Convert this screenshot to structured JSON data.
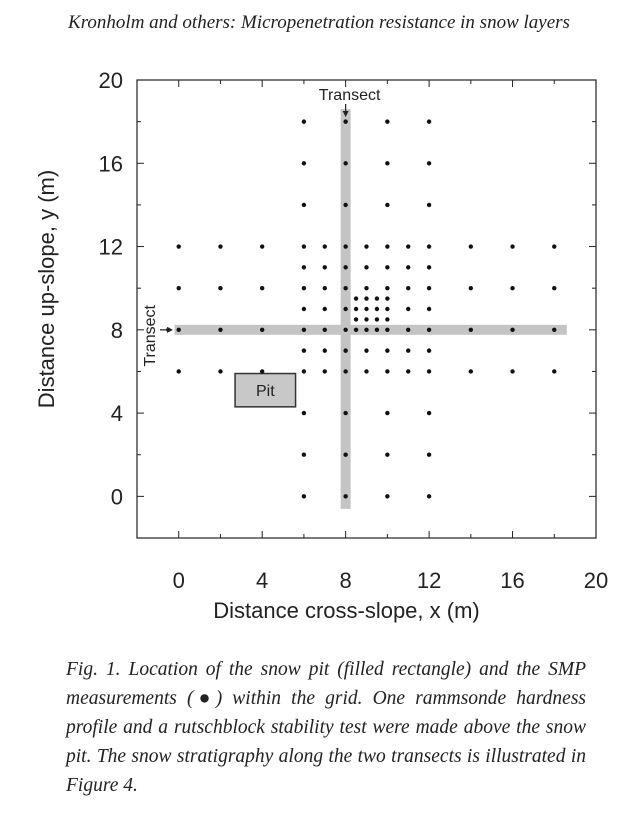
{
  "header": "Kronholm and others: Micropenetration resistance in snow layers",
  "caption": "Fig. 1. Location of the snow pit (filled rectangle) and the SMP measurements (●) within the grid. One rammsonde hardness profile and a rutschblock stability test were made above the snow pit. The snow stratigraphy along the two transects is illustrated in Figure 4.",
  "chart_data": {
    "type": "scatter",
    "xlabel": "Distance cross-slope, x (m)",
    "ylabel": "Distance up-slope, y (m)",
    "xlim": [
      -2,
      20
    ],
    "ylim": [
      -2,
      20
    ],
    "xticks": [
      0,
      4,
      8,
      12,
      16,
      20
    ],
    "yticks": [
      0,
      4,
      8,
      12,
      16,
      20
    ],
    "transect_label": "Transect",
    "transect_vertical_x": 8,
    "transect_horizontal_y": 8,
    "pit": {
      "label": "Pit",
      "x0": 2.7,
      "x1": 5.6,
      "y0": 4.3,
      "y1": 5.9
    },
    "points": [
      [
        6,
        18
      ],
      [
        8,
        18
      ],
      [
        10,
        18
      ],
      [
        12,
        18
      ],
      [
        6,
        16
      ],
      [
        8,
        16
      ],
      [
        10,
        16
      ],
      [
        12,
        16
      ],
      [
        6,
        14
      ],
      [
        8,
        14
      ],
      [
        10,
        14
      ],
      [
        12,
        14
      ],
      [
        0,
        12
      ],
      [
        2,
        12
      ],
      [
        4,
        12
      ],
      [
        6,
        12
      ],
      [
        7,
        12
      ],
      [
        8,
        12
      ],
      [
        9,
        12
      ],
      [
        10,
        12
      ],
      [
        11,
        12
      ],
      [
        12,
        12
      ],
      [
        14,
        12
      ],
      [
        16,
        12
      ],
      [
        18,
        12
      ],
      [
        6,
        11
      ],
      [
        7,
        11
      ],
      [
        8,
        11
      ],
      [
        9,
        11
      ],
      [
        10,
        11
      ],
      [
        11,
        11
      ],
      [
        12,
        11
      ],
      [
        0,
        10
      ],
      [
        2,
        10
      ],
      [
        4,
        10
      ],
      [
        6,
        10
      ],
      [
        7,
        10
      ],
      [
        8,
        10
      ],
      [
        9,
        10
      ],
      [
        10,
        10
      ],
      [
        11,
        10
      ],
      [
        12,
        10
      ],
      [
        14,
        10
      ],
      [
        16,
        10
      ],
      [
        18,
        10
      ],
      [
        8.5,
        9.5
      ],
      [
        9,
        9.5
      ],
      [
        9.5,
        9.5
      ],
      [
        10,
        9.5
      ],
      [
        6,
        9
      ],
      [
        7,
        9
      ],
      [
        8,
        9
      ],
      [
        8.5,
        9
      ],
      [
        9,
        9
      ],
      [
        9.5,
        9
      ],
      [
        10,
        9
      ],
      [
        11,
        9
      ],
      [
        12,
        9
      ],
      [
        8.5,
        8.5
      ],
      [
        9,
        8.5
      ],
      [
        9.5,
        8.5
      ],
      [
        10,
        8.5
      ],
      [
        -0.5,
        8
      ],
      [
        0,
        8
      ],
      [
        2,
        8
      ],
      [
        4,
        8
      ],
      [
        6,
        8
      ],
      [
        7,
        8
      ],
      [
        8,
        8
      ],
      [
        8.5,
        8
      ],
      [
        9,
        8
      ],
      [
        9.5,
        8
      ],
      [
        10,
        8
      ],
      [
        11,
        8
      ],
      [
        12,
        8
      ],
      [
        14,
        8
      ],
      [
        16,
        8
      ],
      [
        18,
        8
      ],
      [
        6,
        7
      ],
      [
        7,
        7
      ],
      [
        8,
        7
      ],
      [
        9,
        7
      ],
      [
        10,
        7
      ],
      [
        11,
        7
      ],
      [
        12,
        7
      ],
      [
        0,
        6
      ],
      [
        2,
        6
      ],
      [
        4,
        6
      ],
      [
        6,
        6
      ],
      [
        7,
        6
      ],
      [
        8,
        6
      ],
      [
        9,
        6
      ],
      [
        10,
        6
      ],
      [
        11,
        6
      ],
      [
        12,
        6
      ],
      [
        14,
        6
      ],
      [
        16,
        6
      ],
      [
        18,
        6
      ],
      [
        6,
        4
      ],
      [
        8,
        4
      ],
      [
        10,
        4
      ],
      [
        12,
        4
      ],
      [
        6,
        2
      ],
      [
        8,
        2
      ],
      [
        10,
        2
      ],
      [
        12,
        2
      ],
      [
        6,
        0
      ],
      [
        8,
        0
      ],
      [
        10,
        0
      ],
      [
        12,
        0
      ]
    ]
  }
}
